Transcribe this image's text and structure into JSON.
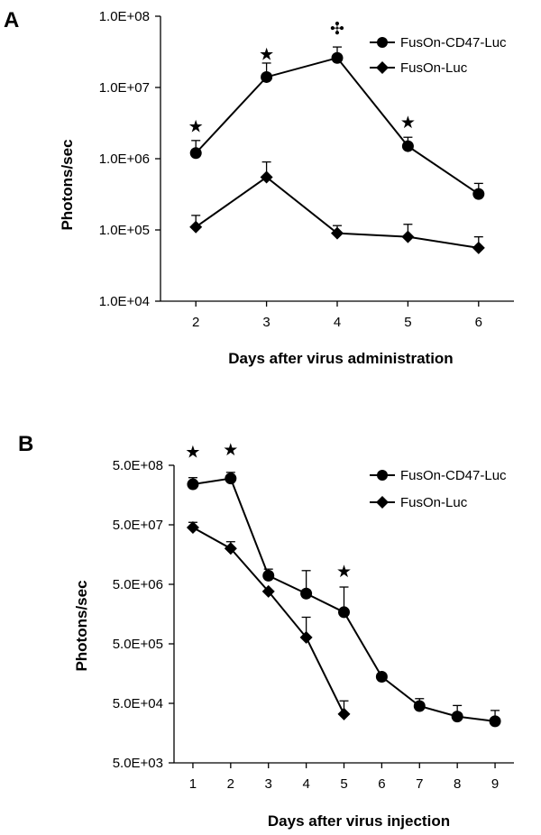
{
  "chart_data": [
    {
      "panel": "A",
      "type": "line",
      "yscale": "log",
      "ylabel": "Photons/sec",
      "xlabel": "Days after virus administration",
      "x": [
        2,
        3,
        4,
        5,
        6
      ],
      "xlim": [
        1.5,
        6.5
      ],
      "ylim": [
        10000,
        100000000
      ],
      "yticks": [
        10000,
        100000,
        1000000,
        10000000,
        100000000
      ],
      "ytick_labels": [
        "1.0E+04",
        "1.0E+05",
        "1.0E+06",
        "1.0E+07",
        "1.0E+08"
      ],
      "xtick_labels": [
        "2",
        "3",
        "4",
        "5",
        "6"
      ],
      "series": [
        {
          "name": "FusOn-CD47-Luc",
          "marker": "circle",
          "values": [
            1200000,
            14000000,
            26000000,
            1500000,
            320000
          ],
          "error_upper": [
            1800000,
            22000000,
            37000000,
            2000000,
            450000
          ]
        },
        {
          "name": "FusOn-Luc",
          "marker": "diamond",
          "values": [
            110000,
            550000,
            90000,
            80000,
            56000
          ],
          "error_upper": [
            160000,
            900000,
            115000,
            120000,
            80000
          ]
        }
      ],
      "annotations": [
        {
          "x": 2,
          "value": 2900000,
          "symbol": "★"
        },
        {
          "x": 3,
          "value": 30000000,
          "symbol": "★"
        },
        {
          "x": 4,
          "value": 68000000,
          "symbol": "✣"
        },
        {
          "x": 5,
          "value": 3300000,
          "symbol": "★"
        }
      ]
    },
    {
      "panel": "B",
      "type": "line",
      "yscale": "log",
      "ylabel": "Photons/sec",
      "xlabel": "Days after virus injection",
      "x": [
        1,
        2,
        3,
        4,
        5,
        6,
        7,
        8,
        9
      ],
      "xlim": [
        0.5,
        9.5
      ],
      "ylim": [
        5000,
        500000000
      ],
      "yticks": [
        5000,
        50000,
        500000,
        5000000,
        50000000,
        500000000
      ],
      "ytick_labels": [
        "5.0E+03",
        "5.0E+04",
        "5.0E+05",
        "5.0E+06",
        "5.0E+07",
        "5.0E+08"
      ],
      "xtick_labels": [
        "1",
        "2",
        "3",
        "4",
        "5",
        "6",
        "7",
        "8",
        "9"
      ],
      "series": [
        {
          "name": "FusOn-CD47-Luc",
          "marker": "circle",
          "x": [
            1,
            2,
            3,
            4,
            5,
            6,
            7,
            8,
            9
          ],
          "values": [
            240000000,
            300000000,
            7000000,
            3500000,
            1700000,
            140000,
            45000,
            30000,
            25000
          ],
          "error_upper": [
            310000000,
            380000000,
            9000000,
            8500000,
            4500000,
            140000,
            60000,
            46000,
            38000
          ]
        },
        {
          "name": "FusOn-Luc",
          "marker": "diamond",
          "x": [
            1,
            2,
            3,
            4,
            5
          ],
          "values": [
            45000000,
            20000000,
            3800000,
            640000,
            33000
          ],
          "error_upper": [
            55000000,
            26000000,
            3800000,
            1400000,
            55000
          ]
        }
      ],
      "annotations": [
        {
          "x": 1,
          "value": 860000000,
          "symbol": "★"
        },
        {
          "x": 2,
          "value": 940000000,
          "symbol": "★"
        },
        {
          "x": 5,
          "value": 8500000,
          "symbol": "★"
        }
      ]
    }
  ]
}
